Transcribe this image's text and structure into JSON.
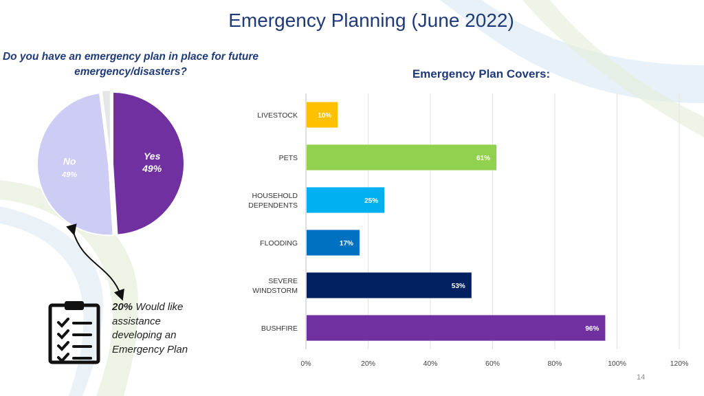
{
  "page": {
    "title": "Emergency Planning (June 2022)",
    "page_number": "14"
  },
  "callout": {
    "highlight": "20%",
    "text": "Would like assistance developing an Emergency Plan"
  },
  "chart_data": [
    {
      "type": "pie",
      "title": "Do you have an emergency plan in place for future emergency/disasters?",
      "slices": [
        {
          "label": "Yes",
          "value": 49,
          "display": "49%",
          "color": "#7030a0"
        },
        {
          "label": "No",
          "value": 49,
          "display": "49%",
          "color": "#ccccf5"
        },
        {
          "label": "",
          "value": 2,
          "display": "",
          "color": "#e6e6e6"
        }
      ]
    },
    {
      "type": "bar",
      "orientation": "horizontal",
      "title": "Emergency Plan Covers:",
      "categories": [
        "LIVESTOCK",
        "PETS",
        "HOUSEHOLD DEPENDENTS",
        "FLOODING",
        "SEVERE WINDSTORM",
        "BUSHFIRE"
      ],
      "values": [
        10,
        61,
        25,
        17,
        53,
        96
      ],
      "value_labels": [
        "10%",
        "61%",
        "25%",
        "17%",
        "53%",
        "96%"
      ],
      "colors": [
        "#ffc000",
        "#92d050",
        "#00b0f0",
        "#0070c0",
        "#002060",
        "#7030a0"
      ],
      "xlim": [
        0,
        120
      ],
      "x_ticks": [
        "0%",
        "20%",
        "40%",
        "60%",
        "80%",
        "100%",
        "120%"
      ],
      "grid": true
    }
  ]
}
